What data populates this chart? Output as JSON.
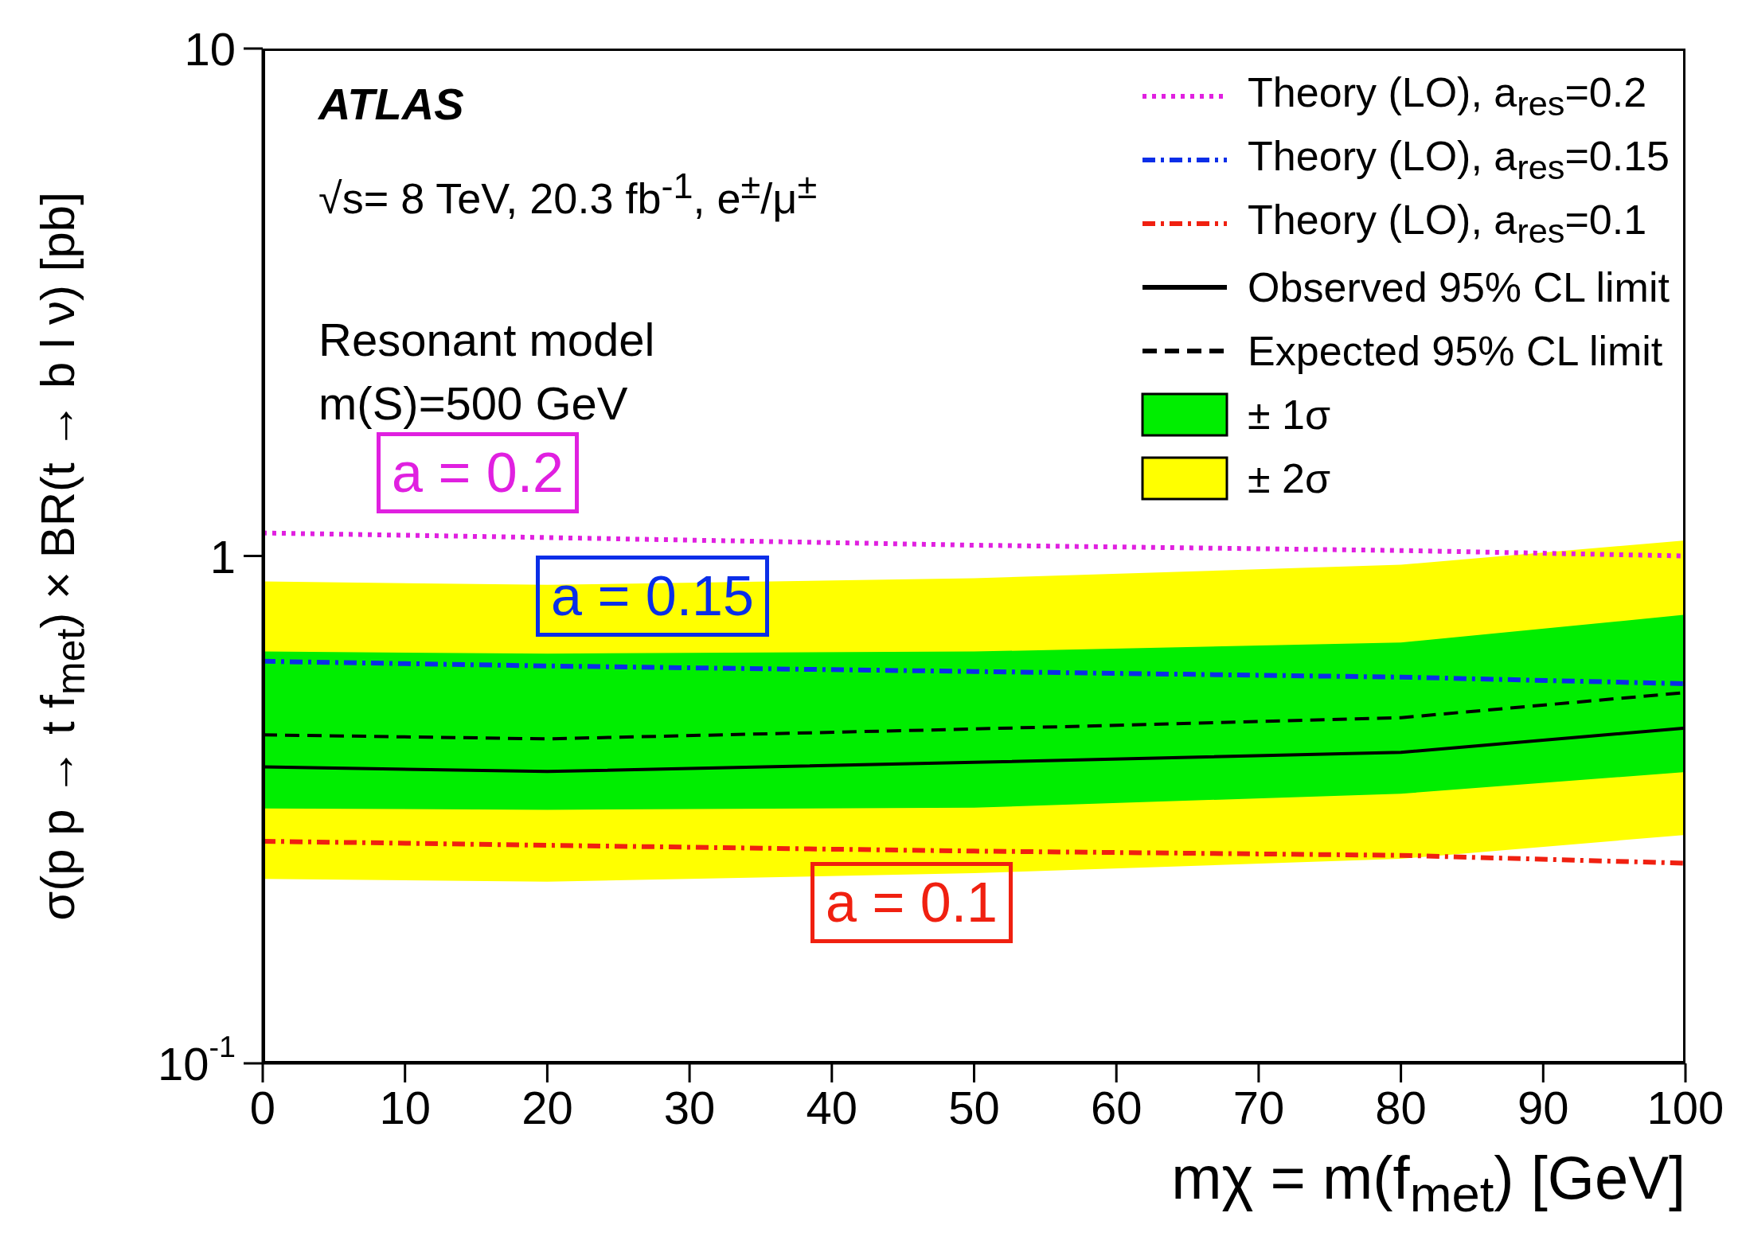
{
  "chart_data": {
    "type": "line",
    "xlabel": "mχ =  m(f$_{met}$) [GeV]",
    "ylabel": "σ(p p → t f$_{met}$) × BR(t → b l ν) [pb]",
    "xlim": [
      0,
      100
    ],
    "xticks": [
      0,
      10,
      20,
      30,
      40,
      50,
      60,
      70,
      80,
      90,
      100
    ],
    "ylim": [
      0.1,
      10
    ],
    "log": true,
    "yticks": [
      {
        "value": 0.1,
        "label": "10$^{-1}$"
      },
      1,
      10
    ],
    "x": [
      0,
      20,
      50,
      80,
      100
    ],
    "legend": "top right",
    "marker": "none",
    "series": [
      {
        "name": "Theory (LO), a$_{res}$=0.2",
        "color": "#e020e0",
        "line_style": "dotted",
        "values": [
          1.11,
          1.087,
          1.05,
          1.025,
          1.0
        ]
      },
      {
        "name": "Theory (LO), a$_{res}$=0.15",
        "color": "#0a2ee8",
        "line_style": "dashdot",
        "values": [
          0.62,
          0.607,
          0.592,
          0.577,
          0.56
        ]
      },
      {
        "name": "Theory (LO), a$_{res}$=0.1",
        "color": "#f02010",
        "line_style": "dashdot",
        "values": [
          0.274,
          0.269,
          0.262,
          0.257,
          0.248
        ]
      },
      {
        "name": "Observed 95% CL limit",
        "color": "#000000",
        "line_style": "solid",
        "values": [
          0.384,
          0.376,
          0.392,
          0.41,
          0.458
        ]
      },
      {
        "name": "Expected 95% CL limit",
        "color": "#000000",
        "line_style": "dashed",
        "values": [
          0.444,
          0.436,
          0.456,
          0.48,
          0.538
        ]
      },
      {
        "name": "± 1σ",
        "type": "area",
        "color": "#00ee00",
        "values": [
          null,
          null,
          null,
          null,
          null
        ],
        "lower": [
          0.318,
          0.316,
          0.319,
          0.34,
          0.375
        ],
        "upper": [
          0.648,
          0.642,
          0.648,
          0.675,
          0.766
        ]
      },
      {
        "name": "± 2σ",
        "type": "area",
        "color": "#ffff00",
        "values": [
          null,
          null,
          null,
          null,
          null
        ],
        "lower": [
          0.231,
          0.228,
          0.237,
          0.253,
          0.282
        ],
        "upper": [
          0.891,
          0.877,
          0.904,
          0.961,
          1.073
        ]
      }
    ],
    "annotations": [
      "ATLAS",
      "√s= 8 TeV, 20.3 fb$^{-1}$, e$^{±}$/μ$^{±}$",
      "Resonant model",
      "m(S)=500 GeV",
      "a = 0.2",
      "a = 0.15",
      "a = 0.1"
    ]
  }
}
